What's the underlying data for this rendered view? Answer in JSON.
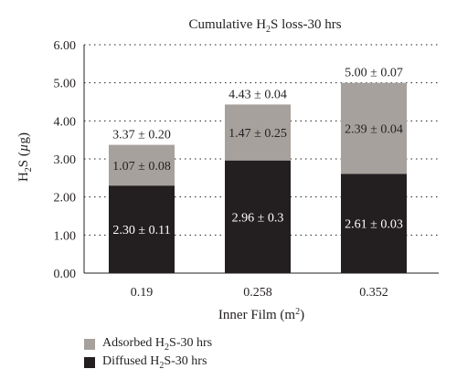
{
  "chart_data": {
    "type": "bar",
    "stacked": true,
    "title": "Cumulative H2S loss-30 hrs",
    "xlabel": "Inner Film (m2)",
    "ylabel": "H2S (µg)",
    "categories": [
      "0.19",
      "0.258",
      "0.352"
    ],
    "ylim": [
      0,
      6
    ],
    "yticks": [
      "0.00",
      "1.00",
      "2.00",
      "3.00",
      "4.00",
      "5.00",
      "6.00"
    ],
    "grid": "dotted horizontal",
    "series": [
      {
        "name": "Diffused H2S-30 hrs",
        "color": "#231f20",
        "values": [
          2.3,
          2.96,
          2.61
        ],
        "labels": [
          "2.30 ± 0.11",
          "2.96 ± 0.3",
          "2.61 ± 0.03"
        ]
      },
      {
        "name": "Adsorbed H2S-30 hrs",
        "color": "#a7a19e",
        "values": [
          1.07,
          1.47,
          2.39
        ],
        "labels": [
          "1.07 ± 0.08",
          "1.47 ± 0.25",
          "2.39 ± 0.04"
        ]
      }
    ],
    "totals": [
      3.37,
      4.43,
      5.0
    ],
    "total_labels": [
      "3.37 ± 0.20",
      "4.43 ± 0.04",
      "5.00 ± 0.07"
    ],
    "legend_position": "bottom-left"
  }
}
